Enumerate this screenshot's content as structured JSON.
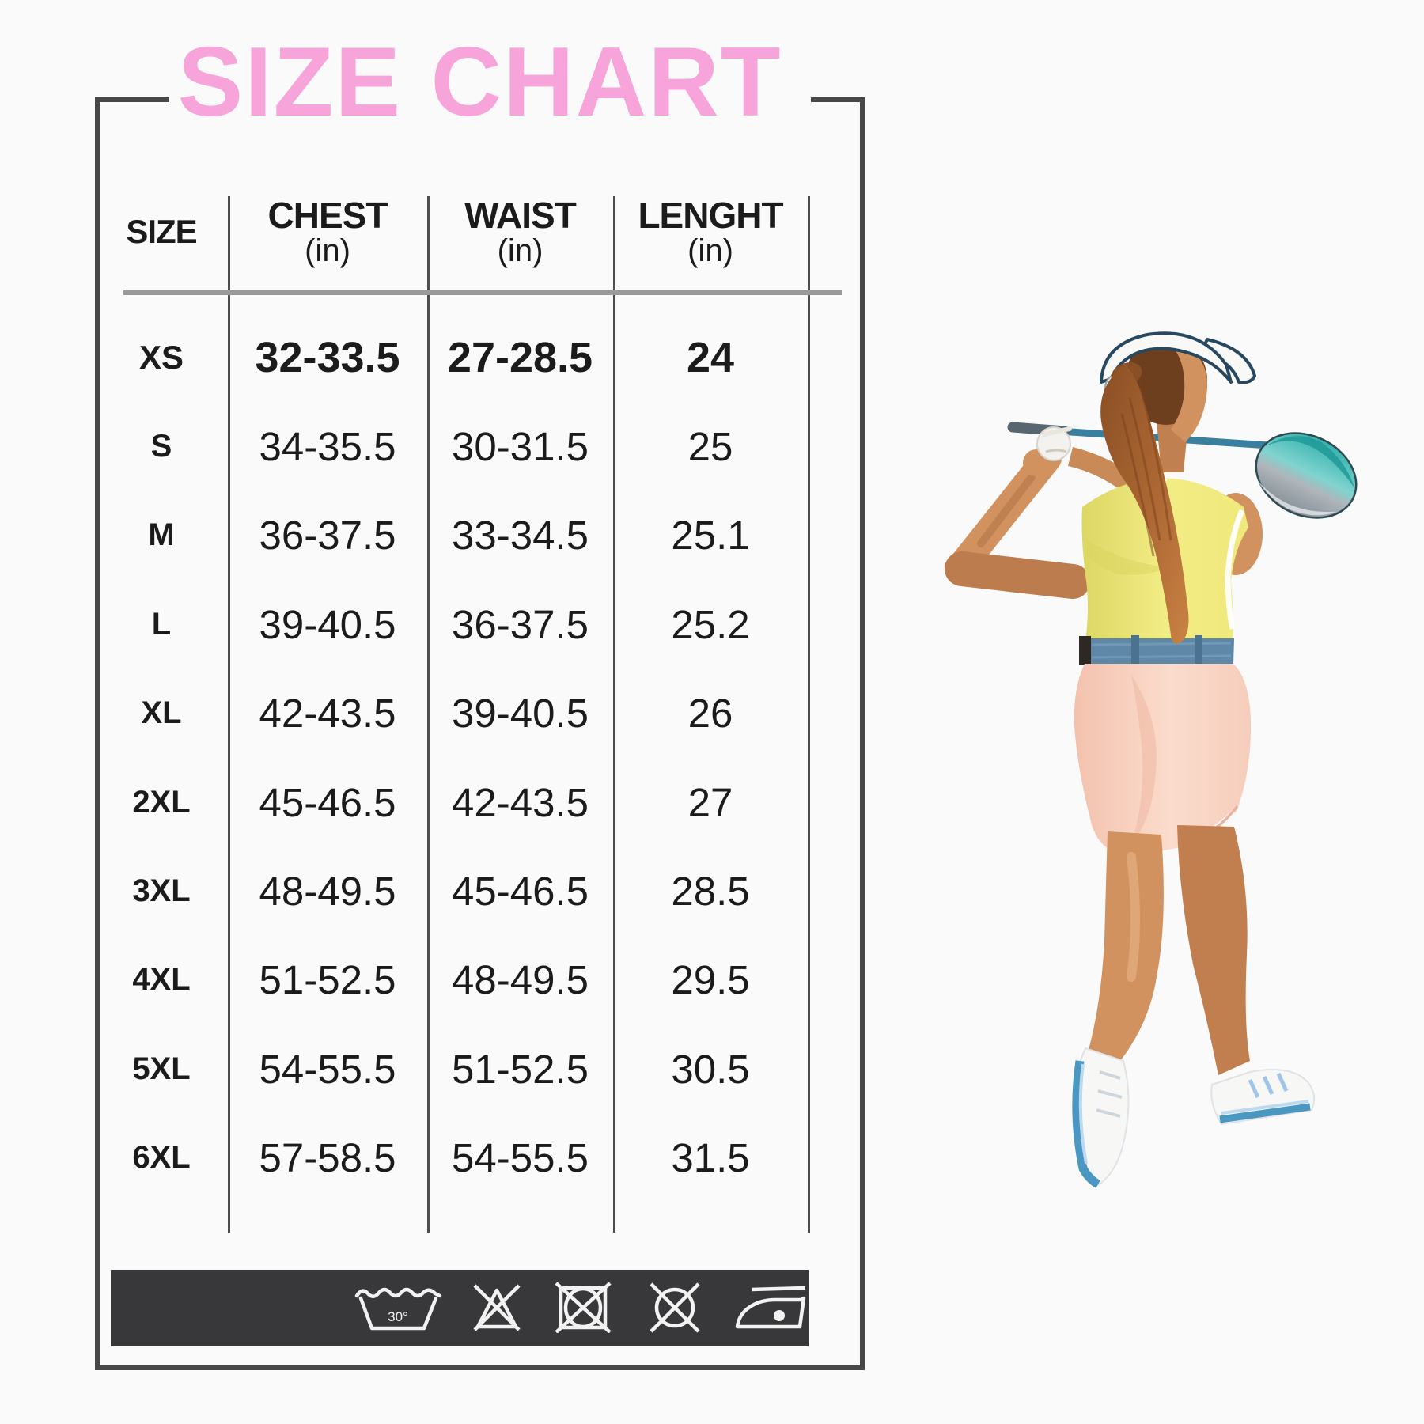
{
  "page": {
    "background": "#fbfafa",
    "title_color": "#f7a4da",
    "frame_color": "#474747",
    "care_bar_color": "#38383a"
  },
  "size_chart": {
    "title": "SIZE CHART",
    "columns": {
      "size": {
        "label": "SIZE",
        "unit": ""
      },
      "chest": {
        "label": "CHEST",
        "unit": "(in)"
      },
      "waist": {
        "label": "WAIST",
        "unit": "(in)"
      },
      "length": {
        "label": "LENGHT",
        "unit": "(in)"
      }
    },
    "rows": [
      {
        "size": "XS",
        "chest": "32-33.5",
        "waist": "27-28.5",
        "length": "24",
        "bold": true
      },
      {
        "size": "S",
        "chest": "34-35.5",
        "waist": "30-31.5",
        "length": "25"
      },
      {
        "size": "M",
        "chest": "36-37.5",
        "waist": "33-34.5",
        "length": "25.1"
      },
      {
        "size": "L",
        "chest": "39-40.5",
        "waist": "36-37.5",
        "length": "25.2"
      },
      {
        "size": "XL",
        "chest": "42-43.5",
        "waist": "39-40.5",
        "length": "26"
      },
      {
        "size": "2XL",
        "chest": "45-46.5",
        "waist": "42-43.5",
        "length": "27"
      },
      {
        "size": "3XL",
        "chest": "48-49.5",
        "waist": "45-46.5",
        "length": "28.5"
      },
      {
        "size": "4XL",
        "chest": "51-52.5",
        "waist": "48-49.5",
        "length": "29.5"
      },
      {
        "size": "5XL",
        "chest": "54-55.5",
        "waist": "51-52.5",
        "length": "30.5"
      },
      {
        "size": "6XL",
        "chest": "57-58.5",
        "waist": "54-55.5",
        "length": "31.5"
      }
    ],
    "care": {
      "wash_temp": "30°",
      "icons": [
        "wash-30-icon",
        "do-not-bleach-icon",
        "do-not-tumble-dry-icon",
        "do-not-dry-clean-icon",
        "iron-low-icon"
      ]
    }
  },
  "photo": {
    "description": "Rear view of a woman golfer in follow-through swing holding a driver behind her shoulders",
    "colors": {
      "visor": "#f8f8f6",
      "visor_trim": "#27485f",
      "hair": "#8a4f24",
      "top": "#efe97b",
      "belt": "#5e87a8",
      "skirt": "#f8d3c5",
      "skin": "#d29260",
      "shoes": "#f7f7f5",
      "shoe_sole": "#4a97c2",
      "club_shaft": "#3b7f9f",
      "club_head": "#35b0ac"
    }
  }
}
